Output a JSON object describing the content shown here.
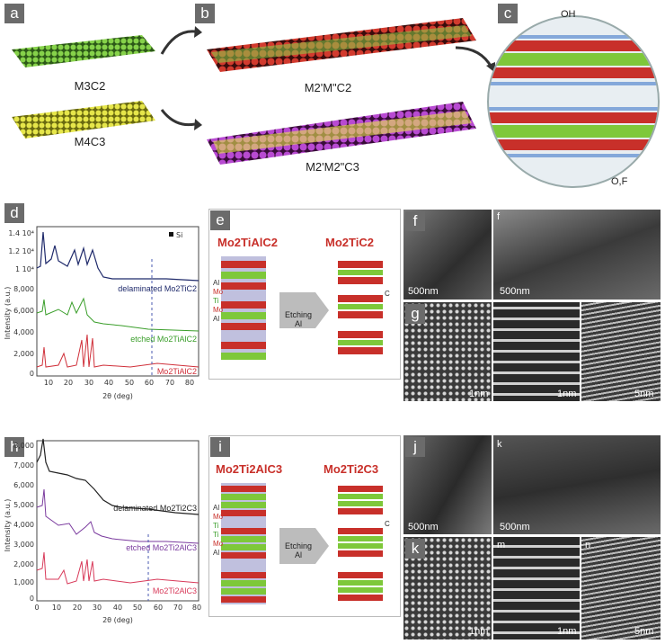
{
  "labels": {
    "a": "a",
    "b": "b",
    "c": "c",
    "d": "d",
    "e": "e",
    "f": "f",
    "f2": "f",
    "g": "g",
    "h": "h",
    "i": "i",
    "j": "j",
    "k": "k",
    "k2": "k",
    "m": "m",
    "n": "n"
  },
  "top": {
    "m3c2": "M3C2",
    "m4c3": "M4C3",
    "m2mc2": "M2'M\"C2",
    "m2m2c3": "M2'M2\"C3",
    "oh": "OH",
    "of": "O,F"
  },
  "xrd_d": {
    "ylabel": "Intensity (a.u.)",
    "xlabel": "2θ (deg)",
    "legend_si": "Si",
    "curves": [
      "delaminated Mo2TiC2",
      "etched Mo2TiAlC2",
      "Mo2TiAlC2"
    ],
    "yticks": [
      "1.4 10⁴",
      "1.2 10⁴",
      "1 10⁴",
      "8,000",
      "6,000",
      "4,000",
      "2,000",
      "0"
    ],
    "xticks": [
      "10",
      "20",
      "30",
      "40",
      "50",
      "60",
      "70",
      "80"
    ]
  },
  "xrd_h": {
    "ylabel": "Intensity (a.u.)",
    "xlabel": "2θ (deg)",
    "curves": [
      "delaminated Mo2Ti2C3",
      "etched Mo2Ti2AlC3",
      "Mo2Ti2AlC3"
    ],
    "yticks": [
      "8,000",
      "7,000",
      "6,000",
      "5,000",
      "4,000",
      "3,000",
      "2,000",
      "1,000",
      "0"
    ],
    "xticks": [
      "0",
      "10",
      "20",
      "30",
      "40",
      "50",
      "60",
      "70",
      "80"
    ]
  },
  "panel_e": {
    "left_formula": "Mo2TiAlC2",
    "right_formula": "Mo2TiC2",
    "arrow": "Etching Al",
    "atoms": [
      "Al",
      "Mo",
      "Ti",
      "Mo",
      "Al"
    ],
    "c_label": "C"
  },
  "panel_i": {
    "left_formula": "Mo2Ti2AlC3",
    "right_formula": "Mo2Ti2C3",
    "arrow": "Etching Al",
    "atoms": [
      "Al",
      "Mo",
      "Ti",
      "Ti",
      "Mo",
      "Al"
    ],
    "c_label": "C"
  },
  "scalebars": {
    "f": "500nm",
    "f2": "500nm",
    "g": "1nm",
    "g2": "1nm",
    "g3": "5nm",
    "j": "500nm",
    "k": "500nm",
    "k2": "1nm",
    "m": "1nm",
    "n": "5nm"
  },
  "colors": {
    "mo": "#c8302a",
    "ti": "#7ec83a",
    "c": "#3a3a8c",
    "al": "#5a5aa8",
    "xrd_top": "#1f2a6b",
    "xrd_mid": "#3a9e2a",
    "xrd_bot": "#d0303a",
    "xrd_h_top": "#222222",
    "xrd_h_mid": "#7a3a9e",
    "xrd_h_bot": "#d83a5a"
  }
}
